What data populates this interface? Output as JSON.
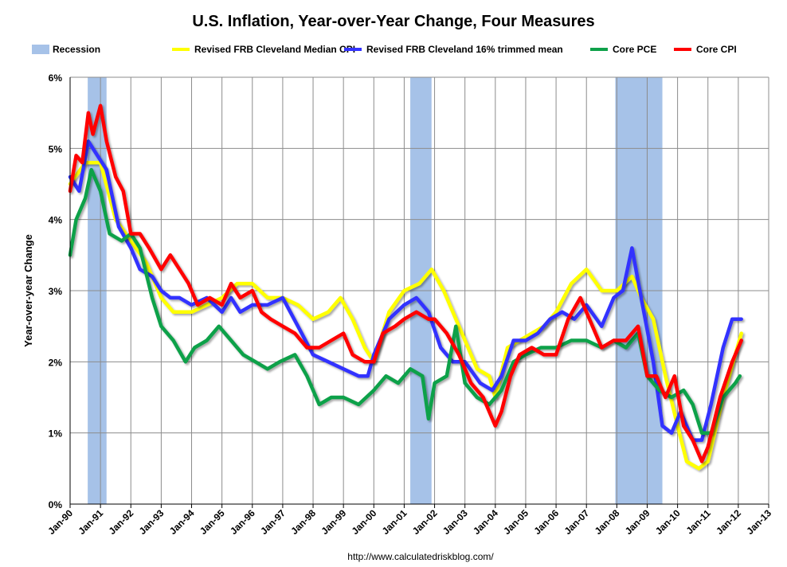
{
  "chart_data": {
    "type": "line",
    "title": "U.S. Inflation, Year-over-Year Change, Four Measures",
    "xlabel": "",
    "ylabel": "Year-over-year Change",
    "source": "http://www.calculatedriskblog.com/",
    "xlim": [
      1990,
      2013
    ],
    "ylim": [
      0,
      6
    ],
    "grid": true,
    "legend_placement": "top",
    "x_ticks": [
      "Jan-90",
      "Jan-91",
      "Jan-92",
      "Jan-93",
      "Jan-94",
      "Jan-95",
      "Jan-96",
      "Jan-97",
      "Jan-98",
      "Jan-99",
      "Jan-00",
      "Jan-01",
      "Jan-02",
      "Jan-03",
      "Jan-04",
      "Jan-05",
      "Jan-06",
      "Jan-07",
      "Jan-08",
      "Jan-09",
      "Jan-10",
      "Jan-11",
      "Jan-12",
      "Jan-13"
    ],
    "y_ticks": [
      "0%",
      "1%",
      "2%",
      "3%",
      "4%",
      "5%",
      "6%"
    ],
    "recession": {
      "name": "Recession",
      "color": "#a6c2e8",
      "periods": [
        [
          1990.58,
          1991.2
        ],
        [
          2001.2,
          2001.9
        ],
        [
          2007.95,
          2009.5
        ]
      ]
    },
    "series": [
      {
        "name": "Revised FRB Cleveland Median CPI",
        "color": "#ffff00",
        "x": [
          1990,
          1990.5,
          1991,
          1991.5,
          1992,
          1992.5,
          1993,
          1993.4,
          1994,
          1994.5,
          1995,
          1995.5,
          1996,
          1996.5,
          1997,
          1997.5,
          1998,
          1998.5,
          1998.9,
          1999.3,
          1999.7,
          2000,
          2000.5,
          2001,
          2001.5,
          2001.9,
          2002.3,
          2002.7,
          2003,
          2003.4,
          2003.8,
          2004,
          2004.4,
          2004.8,
          2005.2,
          2005.6,
          2006,
          2006.5,
          2007,
          2007.5,
          2008,
          2008.5,
          2008.8,
          2009.2,
          2009.6,
          2010,
          2010.3,
          2010.7,
          2011,
          2011.5,
          2012.1
        ],
        "y": [
          4.5,
          4.8,
          4.8,
          4.0,
          3.7,
          3.4,
          2.9,
          2.7,
          2.7,
          2.8,
          2.9,
          3.1,
          3.1,
          2.9,
          2.9,
          2.8,
          2.6,
          2.7,
          2.9,
          2.6,
          2.2,
          2.0,
          2.7,
          3.0,
          3.1,
          3.3,
          3.0,
          2.6,
          2.3,
          1.9,
          1.8,
          1.5,
          2.2,
          2.3,
          2.4,
          2.5,
          2.7,
          3.1,
          3.3,
          3.0,
          3.0,
          3.2,
          2.9,
          2.6,
          1.8,
          1.1,
          0.6,
          0.5,
          0.6,
          1.5,
          2.4
        ]
      },
      {
        "name": "Revised FRB Cleveland 16% trimmed mean",
        "color": "#3333ff",
        "x": [
          1990,
          1990.3,
          1990.6,
          1990.9,
          1991.2,
          1991.6,
          1992,
          1992.3,
          1992.7,
          1993,
          1993.3,
          1993.6,
          1994,
          1994.5,
          1995,
          1995.3,
          1995.6,
          1996,
          1996.5,
          1997,
          1997.5,
          1998,
          1998.5,
          1999,
          1999.5,
          1999.8,
          2000,
          2000.5,
          2001,
          2001.4,
          2001.8,
          2002.2,
          2002.6,
          2003,
          2003.5,
          2003.9,
          2004.2,
          2004.6,
          2005,
          2005.4,
          2005.8,
          2006.2,
          2006.6,
          2007,
          2007.5,
          2007.9,
          2008.2,
          2008.5,
          2008.8,
          2009.2,
          2009.5,
          2009.8,
          2010.1,
          2010.5,
          2010.8,
          2011.1,
          2011.5,
          2011.8,
          2012.1
        ],
        "y": [
          4.6,
          4.4,
          5.1,
          4.9,
          4.7,
          3.9,
          3.6,
          3.3,
          3.2,
          3.0,
          2.9,
          2.9,
          2.8,
          2.9,
          2.7,
          2.9,
          2.7,
          2.8,
          2.8,
          2.9,
          2.5,
          2.1,
          2.0,
          1.9,
          1.8,
          1.8,
          2.1,
          2.6,
          2.8,
          2.9,
          2.7,
          2.2,
          2.0,
          2.0,
          1.7,
          1.6,
          1.8,
          2.3,
          2.3,
          2.4,
          2.6,
          2.7,
          2.6,
          2.8,
          2.5,
          2.9,
          3.0,
          3.6,
          2.9,
          2.0,
          1.1,
          1.0,
          1.3,
          0.9,
          0.9,
          1.4,
          2.2,
          2.6,
          2.6
        ]
      },
      {
        "name": "Core PCE",
        "color": "#0fa14a",
        "x": [
          1990,
          1990.2,
          1990.5,
          1990.7,
          1991,
          1991.3,
          1991.7,
          1992,
          1992.3,
          1992.7,
          1993,
          1993.4,
          1993.8,
          1994.1,
          1994.5,
          1994.9,
          1995.3,
          1995.7,
          1996.1,
          1996.5,
          1996.9,
          1997.4,
          1997.8,
          1998.2,
          1998.6,
          1999,
          1999.5,
          2000,
          2000.4,
          2000.8,
          2001.2,
          2001.6,
          2001.8,
          2002,
          2002.4,
          2002.7,
          2003,
          2003.4,
          2003.8,
          2004.2,
          2004.6,
          2005,
          2005.5,
          2006,
          2006.5,
          2007,
          2007.5,
          2007.9,
          2008.3,
          2008.7,
          2009,
          2009.4,
          2009.8,
          2010.2,
          2010.5,
          2010.8,
          2011.1,
          2011.5,
          2011.9,
          2012.05
        ],
        "y": [
          3.5,
          4.0,
          4.3,
          4.7,
          4.4,
          3.8,
          3.7,
          3.8,
          3.6,
          2.9,
          2.5,
          2.3,
          2.0,
          2.2,
          2.3,
          2.5,
          2.3,
          2.1,
          2.0,
          1.9,
          2.0,
          2.1,
          1.8,
          1.4,
          1.5,
          1.5,
          1.4,
          1.6,
          1.8,
          1.7,
          1.9,
          1.8,
          1.2,
          1.7,
          1.8,
          2.5,
          1.7,
          1.5,
          1.4,
          1.6,
          2.0,
          2.1,
          2.2,
          2.2,
          2.3,
          2.3,
          2.2,
          2.3,
          2.2,
          2.4,
          1.8,
          1.6,
          1.5,
          1.6,
          1.4,
          1.0,
          1.0,
          1.5,
          1.7,
          1.8
        ]
      },
      {
        "name": "Core CPI",
        "color": "#ff0000",
        "x": [
          1990,
          1990.2,
          1990.4,
          1990.6,
          1990.75,
          1991,
          1991.2,
          1991.5,
          1991.75,
          1992,
          1992.3,
          1992.6,
          1993,
          1993.3,
          1993.6,
          1993.9,
          1994.2,
          1994.6,
          1995,
          1995.3,
          1995.6,
          1996,
          1996.3,
          1996.6,
          1997,
          1997.4,
          1997.8,
          1998.2,
          1998.6,
          1999,
          1999.3,
          1999.7,
          2000,
          2000.3,
          2000.7,
          2001,
          2001.4,
          2001.8,
          2002,
          2002.4,
          2002.8,
          2003.2,
          2003.6,
          2004,
          2004.2,
          2004.5,
          2004.8,
          2005.2,
          2005.6,
          2006,
          2006.4,
          2006.8,
          2007.1,
          2007.5,
          2007.9,
          2008.3,
          2008.7,
          2009,
          2009.3,
          2009.6,
          2009.9,
          2010.2,
          2010.5,
          2010.8,
          2011,
          2011.4,
          2011.8,
          2012.1
        ],
        "y": [
          4.4,
          4.9,
          4.8,
          5.5,
          5.2,
          5.6,
          5.1,
          4.6,
          4.4,
          3.8,
          3.8,
          3.6,
          3.3,
          3.5,
          3.3,
          3.1,
          2.8,
          2.9,
          2.8,
          3.1,
          2.9,
          3.0,
          2.7,
          2.6,
          2.5,
          2.4,
          2.2,
          2.2,
          2.3,
          2.4,
          2.1,
          2.0,
          2.0,
          2.4,
          2.5,
          2.6,
          2.7,
          2.6,
          2.6,
          2.4,
          2.1,
          1.7,
          1.5,
          1.1,
          1.3,
          1.8,
          2.1,
          2.2,
          2.1,
          2.1,
          2.6,
          2.9,
          2.6,
          2.2,
          2.3,
          2.3,
          2.5,
          1.8,
          1.8,
          1.5,
          1.8,
          1.1,
          0.9,
          0.6,
          0.8,
          1.5,
          2.0,
          2.3
        ]
      }
    ]
  }
}
